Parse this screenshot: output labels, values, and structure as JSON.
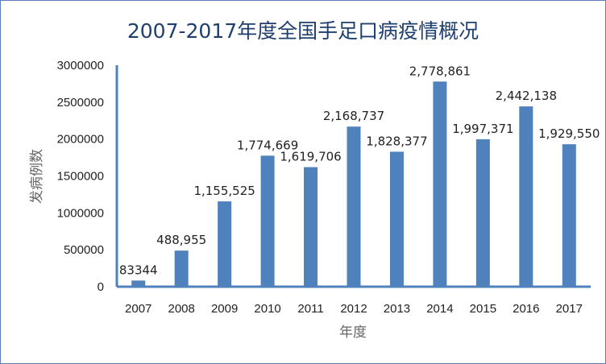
{
  "chart_data": {
    "type": "bar",
    "title": "2007-2017年度全国手足口病疫情概况",
    "xlabel": "年度",
    "ylabel": "发病例数",
    "categories": [
      "2007",
      "2008",
      "2009",
      "2010",
      "2011",
      "2012",
      "2013",
      "2014",
      "2015",
      "2016",
      "2017"
    ],
    "values": [
      83344,
      488955,
      1155525,
      1774669,
      1619706,
      2168737,
      1828377,
      2778861,
      1997371,
      2442138,
      1929550
    ],
    "data_labels": [
      "83344",
      "488,955",
      "1,155,525",
      "1,774,669",
      "1,619,706",
      "2,168,737",
      "1,828,377",
      "2,778,861",
      "1,997,371",
      "2,442,138",
      "1,929,550"
    ],
    "ylim": [
      0,
      3000000
    ],
    "yticks": [
      0,
      500000,
      1000000,
      1500000,
      2000000,
      2500000,
      3000000
    ],
    "ytick_labels": [
      "0",
      "500000",
      "1000000",
      "1500000",
      "2000000",
      "2500000",
      "3000000"
    ],
    "grid": false,
    "legend": "none",
    "bar_color": "#4f81bd",
    "title_color": "#1f3f6e"
  }
}
